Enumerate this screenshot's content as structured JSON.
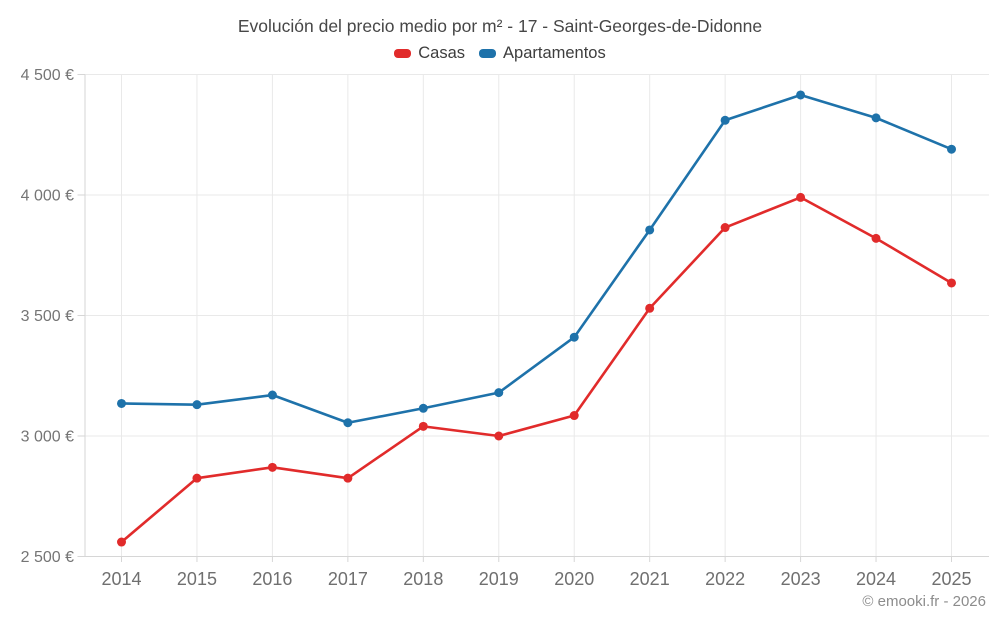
{
  "chart_data": {
    "type": "line",
    "title": "Evolución del precio medio por m² - 17 - Saint-Georges-de-Didonne",
    "x": [
      "2014",
      "2015",
      "2016",
      "2017",
      "2018",
      "2019",
      "2020",
      "2021",
      "2022",
      "2023",
      "2024",
      "2025"
    ],
    "series": [
      {
        "name": "Casas",
        "color": "#e12b2b",
        "values": [
          2560,
          2825,
          2870,
          2825,
          3040,
          3000,
          3085,
          3530,
          3865,
          3990,
          3820,
          3635
        ]
      },
      {
        "name": "Apartamentos",
        "color": "#1e72aa",
        "values": [
          3135,
          3130,
          3170,
          3055,
          3115,
          3180,
          3410,
          3855,
          4310,
          4415,
          4320,
          4190
        ]
      }
    ],
    "ylim": [
      2500,
      4500
    ],
    "yticks": [
      {
        "value": 2500,
        "label": "2 500 €"
      },
      {
        "value": 3000,
        "label": "3 000 €"
      },
      {
        "value": 3500,
        "label": "3 500 €"
      },
      {
        "value": 4000,
        "label": "4 000 €"
      },
      {
        "value": 4500,
        "label": "4 500 €"
      }
    ],
    "xlabel": "",
    "ylabel": "",
    "grid": true,
    "legend_position": "top"
  },
  "footer": {
    "copyright": "© emooki.fr - 2026"
  },
  "colors": {
    "background": "#ffffff",
    "grid_line": "#e9e9e9",
    "axis_line": "#d6d6d6",
    "tick_mark": "#d6d6d6",
    "y_tick_label": "#757575",
    "x_tick_label": "#6f6f6f",
    "title_text": "#474747",
    "legend_text": "#3d3d3d",
    "footer_text": "#8c8c8c"
  }
}
